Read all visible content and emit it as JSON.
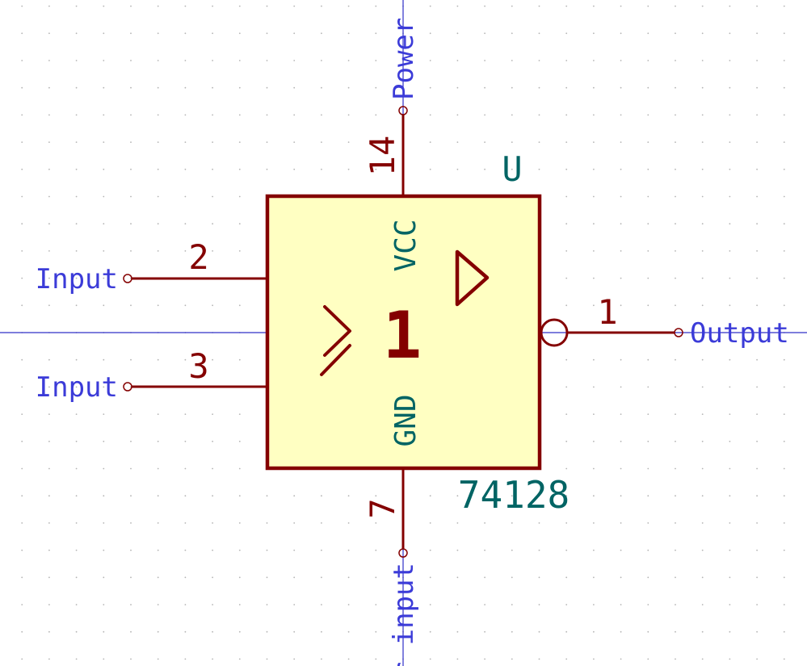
{
  "colors": {
    "background": "#ffffff",
    "grid_dot": "#b4b4b4",
    "guide_line": "#3030c8",
    "body_fill": "#ffffc2",
    "body_outline": "#840000",
    "pin_line": "#840000",
    "pin_number": "#840000",
    "net_label": "#3b3bd8",
    "pin_name": "#006464",
    "reference": "#006464"
  },
  "symbol": {
    "reference": "U",
    "value": "74128",
    "gate_function": "1",
    "schmitt_glyph": "schmitt-trigger-icon",
    "buffer_glyph": "buffer-triangle-icon",
    "inversion_glyph": "inversion-bubble-icon",
    "power_pin_names": {
      "vcc": "VCC",
      "gnd": "GND"
    }
  },
  "pins": {
    "input_a": {
      "number": "2",
      "net": "Input"
    },
    "input_b": {
      "number": "3",
      "net": "Input"
    },
    "output": {
      "number": "1",
      "net": "Output"
    },
    "power": {
      "number": "14",
      "net": "Power"
    },
    "ground": {
      "number": "7",
      "net": "r input"
    }
  }
}
